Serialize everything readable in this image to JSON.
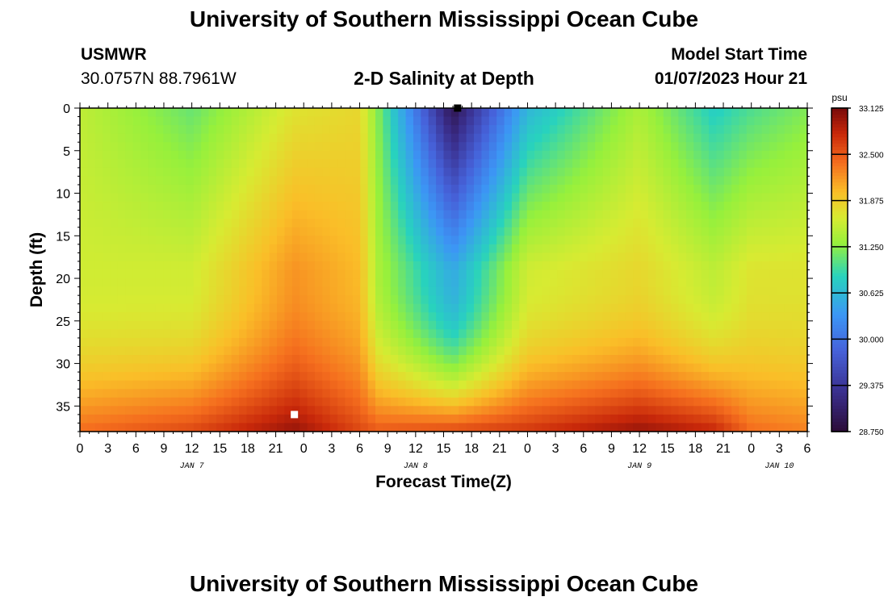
{
  "header": {
    "title": "University of Southern Mississippi Ocean Cube",
    "station": "USMWR",
    "coords": "30.0757N  88.7961W",
    "chart_title": "2-D Salinity at Depth",
    "model_start_label": "Model Start Time",
    "model_start_value": "01/07/2023 Hour 21"
  },
  "footer": {
    "title": "University of Southern Mississippi Ocean Cube"
  },
  "chart_data": {
    "type": "heatmap",
    "xlabel": "Forecast Time(Z)",
    "ylabel": "Depth (ft)",
    "x_tick_labels": [
      "0",
      "3",
      "6",
      "9",
      "12",
      "15",
      "18",
      "21",
      "0",
      "3",
      "6",
      "9",
      "12",
      "15",
      "18",
      "21",
      "0",
      "3",
      "6",
      "9",
      "12",
      "15",
      "18",
      "21",
      "0",
      "3",
      "6"
    ],
    "date_labels": [
      {
        "label": "JAN 7",
        "hour": 12
      },
      {
        "label": "JAN 8",
        "hour": 36
      },
      {
        "label": "JAN 9",
        "hour": 60
      },
      {
        "label": "JAN 10",
        "hour": 75
      }
    ],
    "x_range_hours": [
      0,
      78
    ],
    "y_ticks": [
      0,
      5,
      10,
      15,
      20,
      25,
      30,
      35
    ],
    "ylim": [
      0,
      38
    ],
    "y_inverted": true,
    "colorbar": {
      "unit": "psu",
      "min": 28.75,
      "max": 33.125,
      "tick_labels": [
        "33.125",
        "32.500",
        "31.875",
        "31.250",
        "30.625",
        "30.000",
        "29.375",
        "28.750"
      ]
    },
    "markers": [
      {
        "hour": 23,
        "depth": 36,
        "color": "#ffffff"
      },
      {
        "hour": 40.5,
        "depth": 0,
        "color": "#000000"
      }
    ],
    "salinity_profile": {
      "description": "approximate salinity (psu) per column; surface, mid, bottom",
      "hours": [
        0,
        12,
        23,
        30,
        32,
        40,
        48,
        60,
        68,
        72,
        78
      ],
      "surface": [
        31.5,
        31.1,
        31.7,
        31.8,
        31.2,
        28.9,
        30.6,
        31.4,
        30.8,
        31.0,
        31.2
      ],
      "mid": [
        31.6,
        31.6,
        32.2,
        32.0,
        31.4,
        30.5,
        31.6,
        31.8,
        31.5,
        31.7,
        31.7
      ],
      "bottom": [
        32.4,
        32.6,
        33.0,
        32.6,
        32.5,
        32.6,
        32.7,
        33.0,
        32.8,
        32.4,
        32.3
      ]
    }
  }
}
